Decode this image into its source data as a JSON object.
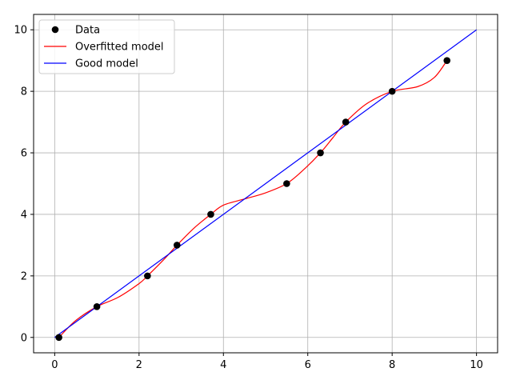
{
  "chart_data": {
    "type": "line",
    "xlim": [
      -0.5,
      10.5
    ],
    "ylim": [
      -0.5,
      10.5
    ],
    "x_ticks": [
      0,
      2,
      4,
      6,
      8,
      10
    ],
    "y_ticks": [
      0,
      2,
      4,
      6,
      8,
      10
    ],
    "grid": true,
    "legend_position": "top-left",
    "series": [
      {
        "name": "Data",
        "kind": "scatter",
        "color": "#000000",
        "x": [
          0.1,
          1.0,
          2.2,
          2.9,
          3.7,
          5.5,
          6.3,
          6.9,
          8.0,
          9.3
        ],
        "y": [
          0,
          1,
          2,
          3,
          4,
          5,
          6,
          7,
          8,
          9
        ]
      },
      {
        "name": "Overfitted model",
        "kind": "line",
        "color": "#ff0000",
        "x": [
          0.1,
          0.5,
          1.0,
          1.5,
          2.0,
          2.2,
          2.6,
          2.9,
          3.3,
          3.7,
          4.0,
          4.5,
          5.0,
          5.5,
          5.9,
          6.3,
          6.6,
          6.9,
          7.4,
          8.0,
          8.6,
          9.0,
          9.3
        ],
        "y": [
          0,
          0.55,
          1,
          1.3,
          1.75,
          2,
          2.55,
          3,
          3.55,
          4,
          4.3,
          4.5,
          4.7,
          5,
          5.45,
          6,
          6.5,
          7,
          7.6,
          8,
          8.15,
          8.45,
          9
        ]
      },
      {
        "name": "Good model",
        "kind": "line",
        "color": "#0000ff",
        "x": [
          0,
          10
        ],
        "y": [
          0,
          10
        ]
      }
    ]
  }
}
